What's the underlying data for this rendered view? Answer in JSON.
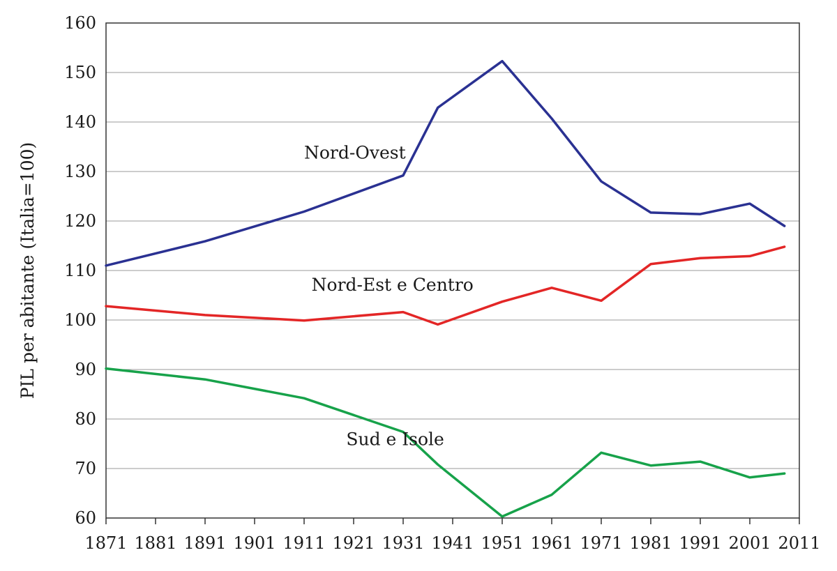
{
  "chart_data": {
    "type": "line",
    "title": "",
    "xlabel": "",
    "ylabel": "PIL per abitante (Italia=100)",
    "xlim": [
      1871,
      2011
    ],
    "ylim": [
      60,
      160
    ],
    "x_ticks": [
      1871,
      1881,
      1891,
      1901,
      1911,
      1921,
      1931,
      1941,
      1951,
      1961,
      1971,
      1981,
      1991,
      2001,
      2011
    ],
    "y_ticks": [
      60,
      70,
      80,
      90,
      100,
      110,
      120,
      130,
      140,
      150,
      160
    ],
    "grid": "horizontal",
    "legend": "none",
    "series": [
      {
        "name": "Nord-Ovest",
        "color": "#2a3192",
        "points": [
          [
            1871,
            111.0
          ],
          [
            1891,
            115.9
          ],
          [
            1911,
            121.9
          ],
          [
            1931,
            129.2
          ],
          [
            1938,
            142.9
          ],
          [
            1951,
            152.3
          ],
          [
            1961,
            140.7
          ],
          [
            1971,
            128.0
          ],
          [
            1981,
            121.7
          ],
          [
            1991,
            121.4
          ],
          [
            2001,
            123.5
          ],
          [
            2008,
            119.0
          ]
        ]
      },
      {
        "name": "Nord-Est e Centro",
        "color": "#e32626",
        "points": [
          [
            1871,
            102.8
          ],
          [
            1891,
            101.0
          ],
          [
            1911,
            99.9
          ],
          [
            1931,
            101.6
          ],
          [
            1938,
            99.1
          ],
          [
            1951,
            103.7
          ],
          [
            1961,
            106.5
          ],
          [
            1971,
            103.9
          ],
          [
            1981,
            111.3
          ],
          [
            1991,
            112.5
          ],
          [
            2001,
            112.9
          ],
          [
            2008,
            114.8
          ]
        ]
      },
      {
        "name": "Sud e Isole",
        "color": "#17a24a",
        "points": [
          [
            1871,
            90.2
          ],
          [
            1891,
            88.0
          ],
          [
            1911,
            84.2
          ],
          [
            1931,
            77.4
          ],
          [
            1938,
            70.8
          ],
          [
            1951,
            60.3
          ],
          [
            1961,
            64.7
          ],
          [
            1971,
            73.2
          ],
          [
            1981,
            70.6
          ],
          [
            1991,
            71.4
          ],
          [
            2001,
            68.2
          ],
          [
            2008,
            69.0
          ]
        ]
      }
    ],
    "annotations": [
      {
        "text": "Nord-Ovest",
        "series": "Nord-Ovest",
        "x": 1911,
        "y": 132.6
      },
      {
        "text": "Nord-Est e Centro",
        "series": "Nord-Est e Centro",
        "x": 1912.5,
        "y": 105.9
      },
      {
        "text": "Sud e Isole",
        "series": "Sud e Isole",
        "x": 1919.5,
        "y": 74.7
      }
    ]
  }
}
